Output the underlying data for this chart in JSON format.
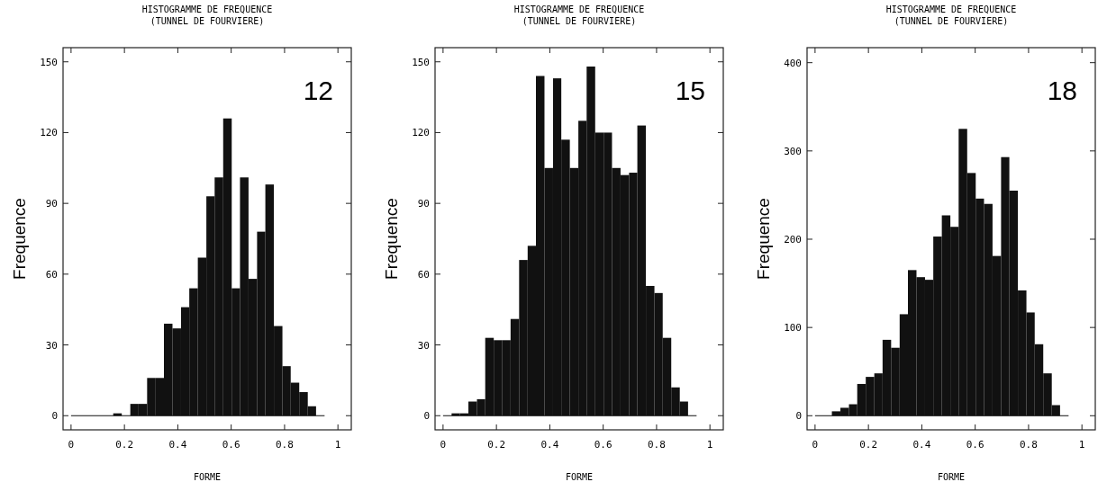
{
  "chart_data": [
    {
      "type": "histogram",
      "title": "HISTOGRAMME DE FREQUENCE",
      "subtitle": "(TUNNEL DE FOURVIERE)",
      "xlabel": "FORME",
      "ylabel": "Frequence",
      "annotations": [
        "12"
      ],
      "color": "#111111",
      "bins": [
        0,
        0.032,
        0.063,
        0.095,
        0.127,
        0.158,
        0.19,
        0.222,
        0.253,
        0.285,
        0.317,
        0.348,
        0.38,
        0.412,
        0.443,
        0.475,
        0.507,
        0.538,
        0.57,
        0.602,
        0.633,
        0.665,
        0.697,
        0.728,
        0.76,
        0.792,
        0.823,
        0.855,
        0.887,
        0.918,
        0.95
      ],
      "values": [
        0,
        0,
        0,
        0,
        0,
        1,
        0,
        5,
        5,
        16,
        16,
        39,
        37,
        46,
        54,
        67,
        93,
        101,
        126,
        54,
        101,
        58,
        78,
        98,
        38,
        21,
        14,
        10,
        4,
        0
      ],
      "xlim": [
        -0.03,
        1.05
      ],
      "xticks": [
        0,
        0.2,
        0.4,
        0.6,
        0.8,
        1
      ],
      "ylim": [
        -6,
        156
      ],
      "yticks": [
        0,
        30,
        60,
        90,
        120,
        150
      ]
    },
    {
      "type": "histogram",
      "title": "HISTOGRAMME DE FREQUENCE",
      "subtitle": "(TUNNEL DE FOURVIERE)",
      "xlabel": "FORME",
      "ylabel": "Frequence",
      "annotations": [
        "15"
      ],
      "color": "#111111",
      "bins": [
        0,
        0.032,
        0.063,
        0.095,
        0.127,
        0.158,
        0.19,
        0.222,
        0.253,
        0.285,
        0.317,
        0.348,
        0.38,
        0.412,
        0.443,
        0.475,
        0.507,
        0.538,
        0.57,
        0.602,
        0.633,
        0.665,
        0.697,
        0.728,
        0.76,
        0.792,
        0.823,
        0.855,
        0.887,
        0.918,
        0.95
      ],
      "values": [
        0,
        1,
        1,
        6,
        7,
        33,
        32,
        32,
        41,
        66,
        72,
        144,
        105,
        143,
        117,
        105,
        125,
        148,
        120,
        120,
        105,
        102,
        103,
        123,
        55,
        52,
        33,
        12,
        6,
        0
      ],
      "xlim": [
        -0.03,
        1.05
      ],
      "xticks": [
        0,
        0.2,
        0.4,
        0.6,
        0.8,
        1
      ],
      "ylim": [
        -6,
        156
      ],
      "yticks": [
        0,
        30,
        60,
        90,
        120,
        150
      ]
    },
    {
      "type": "histogram",
      "title": "HISTOGRAMME DE FREQUENCE",
      "subtitle": "(TUNNEL DE FOURVIERE)",
      "xlabel": "FORME",
      "ylabel": "Frequence",
      "annotations": [
        "18"
      ],
      "color": "#111111",
      "bins": [
        0,
        0.032,
        0.063,
        0.095,
        0.127,
        0.158,
        0.19,
        0.222,
        0.253,
        0.285,
        0.317,
        0.348,
        0.38,
        0.412,
        0.443,
        0.475,
        0.507,
        0.538,
        0.57,
        0.602,
        0.633,
        0.665,
        0.697,
        0.728,
        0.76,
        0.792,
        0.823,
        0.855,
        0.887,
        0.918,
        0.95
      ],
      "values": [
        0,
        0,
        5,
        9,
        13,
        36,
        44,
        48,
        86,
        77,
        115,
        165,
        157,
        154,
        203,
        227,
        214,
        325,
        275,
        246,
        240,
        181,
        293,
        255,
        142,
        117,
        81,
        48,
        12,
        0
      ],
      "xlim": [
        -0.03,
        1.05
      ],
      "xticks": [
        0,
        0.2,
        0.4,
        0.6,
        0.8,
        1
      ],
      "ylim": [
        -16,
        417
      ],
      "yticks": [
        0,
        100,
        200,
        300,
        400
      ]
    }
  ]
}
